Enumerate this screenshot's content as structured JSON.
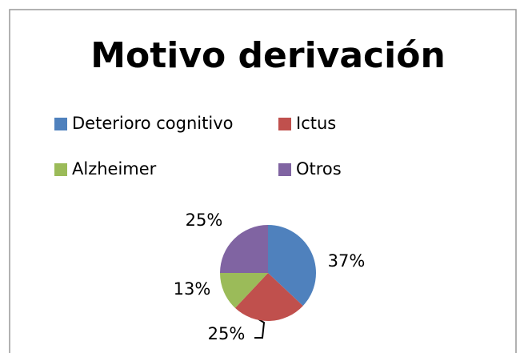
{
  "chart_data": {
    "type": "pie",
    "title": "Motivo derivación",
    "categories": [
      "Deterioro cognitivo",
      "Ictus",
      "Alzheimer",
      "Otros"
    ],
    "values": [
      37,
      25,
      13,
      25
    ],
    "value_labels": [
      "37%",
      "25%",
      "13%",
      "25%"
    ],
    "colors": [
      "#4f81bd",
      "#c0504d",
      "#9bbb59",
      "#8064a2"
    ],
    "legend": "top"
  }
}
